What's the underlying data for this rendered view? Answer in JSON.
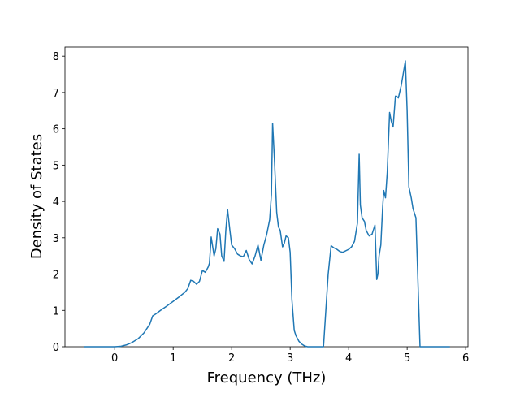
{
  "chart_data": {
    "type": "line",
    "xlabel": "Frequency (THz)",
    "ylabel": "Density of States",
    "x": [
      -0.53,
      0,
      0.1,
      0.2,
      0.3,
      0.4,
      0.5,
      0.6,
      0.65,
      0.7,
      0.8,
      0.9,
      1.0,
      1.1,
      1.2,
      1.25,
      1.3,
      1.35,
      1.4,
      1.45,
      1.5,
      1.55,
      1.6,
      1.62,
      1.65,
      1.7,
      1.73,
      1.76,
      1.8,
      1.83,
      1.87,
      1.9,
      1.93,
      1.97,
      2.0,
      2.05,
      2.1,
      2.15,
      2.2,
      2.25,
      2.3,
      2.35,
      2.4,
      2.45,
      2.5,
      2.55,
      2.6,
      2.65,
      2.68,
      2.7,
      2.73,
      2.77,
      2.8,
      2.83,
      2.87,
      2.9,
      2.93,
      2.97,
      3.0,
      3.03,
      3.07,
      3.1,
      3.15,
      3.2,
      3.25,
      3.3,
      3.4,
      3.57,
      3.65,
      3.7,
      3.75,
      3.8,
      3.85,
      3.9,
      4.0,
      4.05,
      4.1,
      4.15,
      4.18,
      4.2,
      4.23,
      4.27,
      4.3,
      4.35,
      4.4,
      4.45,
      4.48,
      4.5,
      4.52,
      4.55,
      4.58,
      4.6,
      4.63,
      4.66,
      4.7,
      4.73,
      4.76,
      4.8,
      4.82,
      4.85,
      4.9,
      4.97,
      5.0,
      5.03,
      5.07,
      5.1,
      5.15,
      5.22,
      5.5,
      5.73
    ],
    "values": [
      0,
      0,
      0.01,
      0.05,
      0.12,
      0.22,
      0.38,
      0.62,
      0.85,
      0.9,
      1.02,
      1.13,
      1.25,
      1.37,
      1.5,
      1.6,
      1.83,
      1.8,
      1.72,
      1.8,
      2.1,
      2.05,
      2.2,
      2.3,
      3.02,
      2.5,
      2.7,
      3.25,
      3.1,
      2.5,
      2.35,
      3.2,
      3.78,
      3.2,
      2.8,
      2.7,
      2.55,
      2.5,
      2.48,
      2.65,
      2.4,
      2.28,
      2.5,
      2.8,
      2.38,
      2.8,
      3.1,
      3.5,
      4.2,
      6.15,
      5.2,
      3.7,
      3.3,
      3.2,
      2.75,
      2.85,
      3.05,
      3.0,
      2.6,
      1.3,
      0.45,
      0.3,
      0.15,
      0.07,
      0.02,
      0,
      0,
      0,
      2.0,
      2.78,
      2.72,
      2.68,
      2.62,
      2.6,
      2.68,
      2.75,
      2.9,
      3.4,
      5.3,
      3.9,
      3.55,
      3.45,
      3.2,
      3.05,
      3.1,
      3.35,
      1.85,
      2.0,
      2.5,
      2.8,
      3.8,
      4.3,
      4.1,
      4.8,
      6.45,
      6.2,
      6.05,
      6.9,
      6.9,
      6.85,
      7.2,
      7.87,
      6.5,
      4.4,
      4.1,
      3.8,
      3.55,
      0,
      0,
      0
    ],
    "color": "#1f77b4",
    "xlim": [
      -0.85,
      6.04
    ],
    "xticks": [
      0,
      1,
      2,
      3,
      4,
      5,
      6
    ],
    "ylim": [
      0,
      8.25
    ],
    "yticks": [
      0,
      1,
      2,
      3,
      4,
      5,
      6,
      7,
      8
    ]
  }
}
